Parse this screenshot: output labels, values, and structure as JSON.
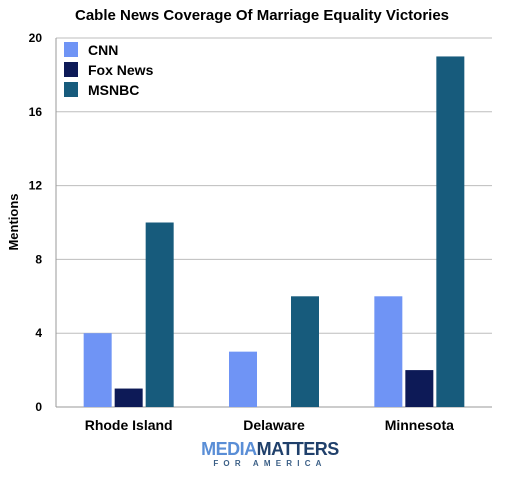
{
  "chart_data": {
    "type": "bar",
    "title": "Cable News Coverage Of Marriage Equality Victories",
    "xlabel": "",
    "ylabel": "Mentions",
    "ylim": [
      0,
      20
    ],
    "yticks": [
      0,
      4,
      8,
      12,
      16,
      20
    ],
    "grid": true,
    "legend_position": "top-left",
    "categories": [
      "Rhode Island",
      "Delaware",
      "Minnesota"
    ],
    "series": [
      {
        "name": "CNN",
        "color": "#6f94f5",
        "values": [
          4,
          3,
          6
        ]
      },
      {
        "name": "Fox News",
        "color": "#0d1a57",
        "values": [
          1,
          0,
          2
        ]
      },
      {
        "name": "MSNBC",
        "color": "#175b7c",
        "values": [
          10,
          6,
          19
        ]
      }
    ]
  },
  "logo": {
    "line1_a": "MEDIA",
    "line1_b": "MATTERS",
    "line2": "FOR AMERICA",
    "color_a": "#5a8ed6",
    "color_b": "#20406b"
  }
}
